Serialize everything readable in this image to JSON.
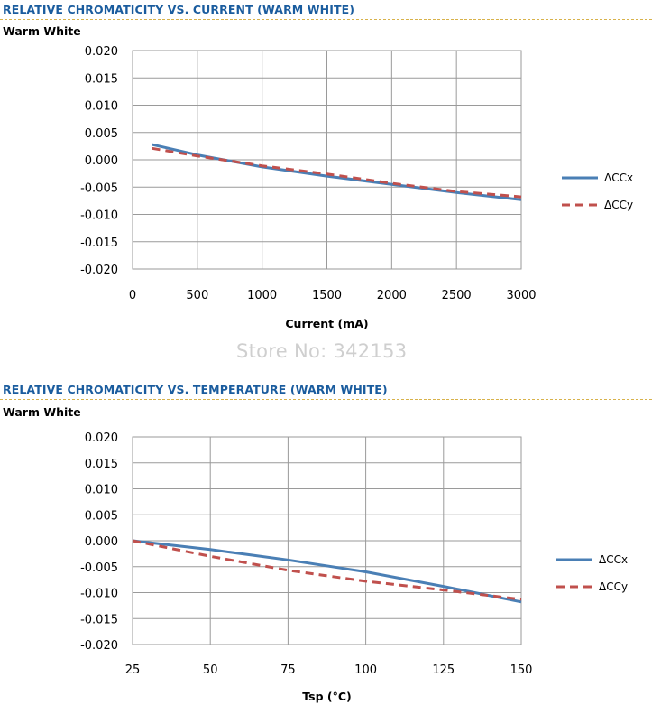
{
  "watermark": "Store No: 342153",
  "colors": {
    "ccx": "#4a7fb5",
    "ccy": "#c0504d",
    "title": "#1a5c9e",
    "grid": "#9a9a9a"
  },
  "chart_data": [
    {
      "type": "line",
      "title": "RELATIVE CHROMATICITY VS. CURRENT (WARM WHITE)",
      "subtitle": "Warm White",
      "xlabel": "Current (mA)",
      "ylabel": "",
      "xlim": [
        0,
        3000
      ],
      "ylim": [
        -0.02,
        0.02
      ],
      "xticks": [
        0,
        500,
        1000,
        1500,
        2000,
        2500,
        3000
      ],
      "yticks": [
        0.02,
        0.015,
        0.01,
        0.005,
        0.0,
        -0.005,
        -0.01,
        -0.015,
        -0.02
      ],
      "ytick_labels": [
        "0.020",
        "0.015",
        "0.010",
        "0.005",
        "0.000",
        "-0.005",
        "-0.010",
        "-0.015",
        "-0.020"
      ],
      "grid": true,
      "legend_position": "right",
      "series": [
        {
          "name": "ΔCCx",
          "style": "solid",
          "x": [
            150,
            500,
            1000,
            1500,
            2000,
            2500,
            3000
          ],
          "y": [
            0.0028,
            0.0009,
            -0.0013,
            -0.003,
            -0.0045,
            -0.006,
            -0.0073
          ]
        },
        {
          "name": "ΔCCy",
          "style": "dashed",
          "x": [
            150,
            500,
            1000,
            1500,
            2000,
            2500,
            3000
          ],
          "y": [
            0.0021,
            0.0007,
            -0.0011,
            -0.0026,
            -0.0043,
            -0.0058,
            -0.0068
          ]
        }
      ]
    },
    {
      "type": "line",
      "title": "RELATIVE CHROMATICITY VS. TEMPERATURE (WARM WHITE)",
      "subtitle": "Warm White",
      "xlabel": "Tsp (°C)",
      "ylabel": "",
      "xlim": [
        25,
        150
      ],
      "ylim": [
        -0.02,
        0.02
      ],
      "xticks": [
        25,
        50,
        75,
        100,
        125,
        150
      ],
      "yticks": [
        0.02,
        0.015,
        0.01,
        0.005,
        0.0,
        -0.005,
        -0.01,
        -0.015,
        -0.02
      ],
      "ytick_labels": [
        "0.020",
        "0.015",
        "0.010",
        "0.005",
        "0.000",
        "-0.005",
        "-0.010",
        "-0.015",
        "-0.020"
      ],
      "grid": true,
      "legend_position": "right",
      "series": [
        {
          "name": "ΔCCx",
          "style": "solid",
          "x": [
            25,
            50,
            75,
            100,
            125,
            150
          ],
          "y": [
            0.0,
            -0.0017,
            -0.0037,
            -0.006,
            -0.0088,
            -0.0118
          ]
        },
        {
          "name": "ΔCCy",
          "style": "dashed",
          "x": [
            25,
            50,
            75,
            100,
            125,
            150
          ],
          "y": [
            0.0,
            -0.003,
            -0.0057,
            -0.0078,
            -0.0095,
            -0.0113
          ]
        }
      ]
    }
  ]
}
